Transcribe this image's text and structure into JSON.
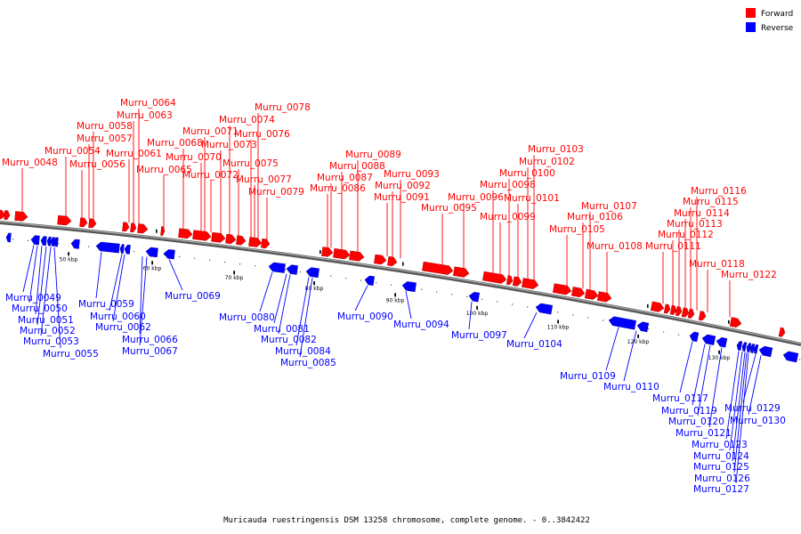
{
  "legend": {
    "forward": {
      "label": "Forward",
      "color": "#ff0000"
    },
    "reverse": {
      "label": "Reverse",
      "color": "#0000ff"
    }
  },
  "caption": "Muricauda ruestringensis DSM 13258 chromosome, complete genome. - 0..3842422",
  "ticks": [
    "50 kbp",
    "60 kbp",
    "70 kbp",
    "80 kbp",
    "90 kbp",
    "100 kbp",
    "110 kbp",
    "120 kbp",
    "130 kbp"
  ],
  "forward_labels": [
    "Murru_0048",
    "Murru_0054",
    "Murru_0056",
    "Murru_0057",
    "Murru_0058",
    "Murru_0061",
    "Murru_0063",
    "Murru_0064",
    "Murru_0065",
    "Murru_0068",
    "Murru_0070",
    "Murru_0071",
    "Murru_0072",
    "Murru_0073",
    "Murru_0074",
    "Murru_0075",
    "Murru_0076",
    "Murru_0077",
    "Murru_0078",
    "Murru_0079",
    "Murru_0086",
    "Murru_0087",
    "Murru_0088",
    "Murru_0089",
    "Murru_0091",
    "Murru_0092",
    "Murru_0093",
    "Murru_0095",
    "Murru_0096",
    "Murru_0098",
    "Murru_0099",
    "Murru_0100",
    "Murru_0101",
    "Murru_0102",
    "Murru_0103",
    "Murru_0105",
    "Murru_0106",
    "Murru_0107",
    "Murru_0108",
    "Murru_0111",
    "Murru_0112",
    "Murru_0113",
    "Murru_0114",
    "Murru_0115",
    "Murru_0116",
    "Murru_0118",
    "Murru_0122"
  ],
  "reverse_labels": [
    "Murru_0049",
    "Murru_0050",
    "Murru_0051",
    "Murru_0052",
    "Murru_0053",
    "Murru_0055",
    "Murru_0059",
    "Murru_0060",
    "Murru_0062",
    "Murru_0066",
    "Murru_0067",
    "Murru_0069",
    "Murru_0080",
    "Murru_0081",
    "Murru_0082",
    "Murru_0084",
    "Murru_0085",
    "Murru_0090",
    "Murru_0094",
    "Murru_0097",
    "Murru_0104",
    "Murru_0109",
    "Murru_0110",
    "Murru_0117",
    "Murru_0119",
    "Murru_0120",
    "Murru_0121",
    "Murru_0123",
    "Murru_0124",
    "Murru_0125",
    "Murru_0126",
    "Murru_0127",
    "Murru_0129",
    "Murru_0130"
  ]
}
